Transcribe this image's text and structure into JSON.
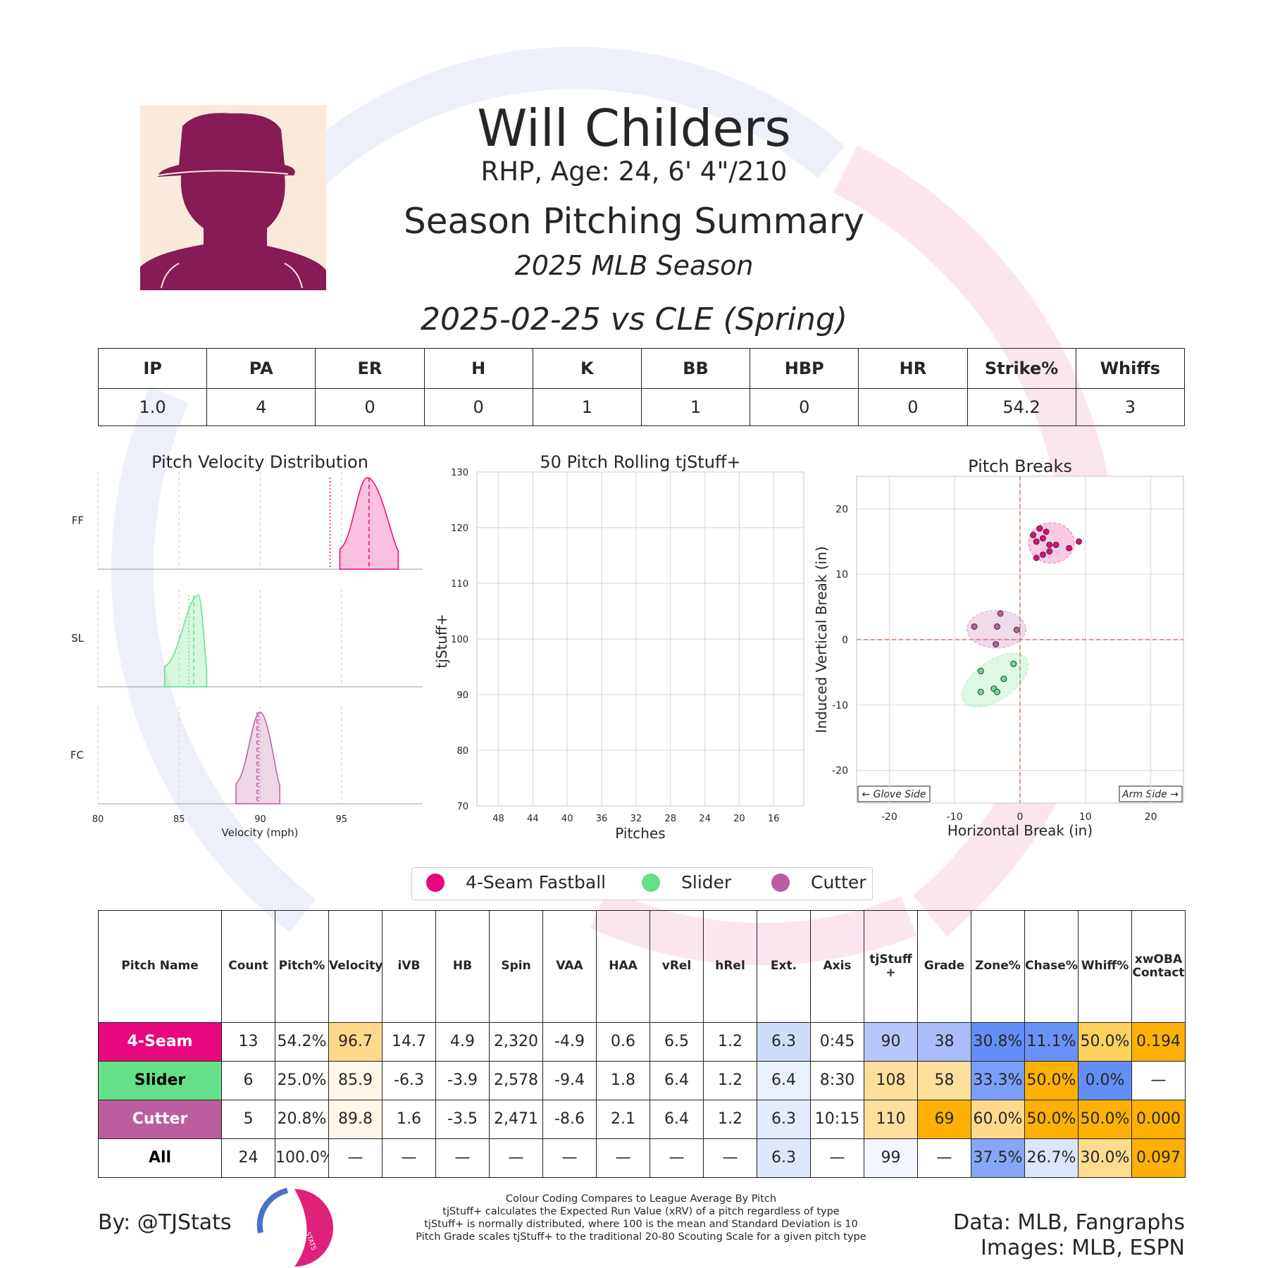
{
  "player": {
    "name": "Will Childers",
    "bio": "RHP, Age: 24, 6' 4\"/210",
    "summary_title": "Season Pitching Summary",
    "season": "2025 MLB Season",
    "game": "2025-02-25 vs CLE (Spring)"
  },
  "colors": {
    "ff": "#e8077e",
    "sl": "#65e088",
    "fc": "#bb5d9f"
  },
  "stats": {
    "headers": [
      "IP",
      "PA",
      "ER",
      "H",
      "K",
      "BB",
      "HBP",
      "HR",
      "Strike%",
      "Whiffs"
    ],
    "values": [
      "1.0",
      "4",
      "0",
      "0",
      "1",
      "1",
      "0",
      "0",
      "54.2",
      "3"
    ]
  },
  "velocity_chart": {
    "title": "Pitch Velocity Distribution",
    "xlabel": "Velocity (mph)",
    "xticks": [
      "80",
      "85",
      "90",
      "95"
    ],
    "xlim": [
      80,
      100
    ],
    "rows": [
      {
        "label": "FF",
        "color": "#e8077e",
        "range": [
          94.9,
          98.5
        ],
        "peak": 96.6,
        "mean": 96.7,
        "league_mean": 94.3
      },
      {
        "label": "SL",
        "color": "#65e088",
        "range": [
          84.1,
          86.7
        ],
        "peak": 86.2,
        "mean": 85.9,
        "league_mean": 85.6
      },
      {
        "label": "FC",
        "color": "#bb5d9f",
        "range": [
          88.5,
          91.2
        ],
        "peak": 90.0,
        "mean": 89.8,
        "league_mean": 89.9
      }
    ]
  },
  "rolling_chart": {
    "title": "50 Pitch Rolling tjStuff+",
    "ylabel": "tjStuff+",
    "xlabel": "Pitches",
    "yticks": [
      "70",
      "80",
      "90",
      "100",
      "110",
      "120",
      "130"
    ],
    "xticks": [
      "48",
      "44",
      "40",
      "36",
      "32",
      "28",
      "24",
      "20",
      "16"
    ]
  },
  "break_chart": {
    "title": "Pitch Breaks",
    "xlabel": "Horizontal Break (in)",
    "ylabel": "Induced Vertical Break (in)",
    "xticks": [
      "-20",
      "-10",
      "0",
      "10",
      "20"
    ],
    "yticks": [
      "20",
      "10",
      "0",
      "-10",
      "-20"
    ],
    "glove_label": "← Glove Side",
    "arm_label": "Arm Side →"
  },
  "chart_data": [
    {
      "type": "area",
      "title": "Pitch Velocity Distribution",
      "xlabel": "Velocity (mph)",
      "xlim": [
        80,
        100
      ],
      "series": [
        {
          "name": "FF",
          "min": 94.9,
          "max": 98.5,
          "peak": 96.6,
          "mean": 96.7
        },
        {
          "name": "SL",
          "min": 84.1,
          "max": 86.7,
          "peak": 86.2,
          "mean": 85.9
        },
        {
          "name": "FC",
          "min": 88.5,
          "max": 91.2,
          "peak": 90.0,
          "mean": 89.8
        }
      ]
    },
    {
      "type": "line",
      "title": "50 Pitch Rolling tjStuff+",
      "xlabel": "Pitches",
      "ylabel": "tjStuff+",
      "ylim": [
        70,
        130
      ],
      "xlim": [
        50,
        13
      ],
      "series": []
    },
    {
      "type": "scatter",
      "title": "Pitch Breaks",
      "xlabel": "Horizontal Break (in)",
      "ylabel": "Induced Vertical Break (in)",
      "xlim": [
        -25,
        25
      ],
      "ylim": [
        -25,
        25
      ],
      "series": [
        {
          "name": "4-Seam Fastball",
          "points": [
            [
              2,
              16
            ],
            [
              3,
              17
            ],
            [
              4,
              16.5
            ],
            [
              3.5,
              15.5
            ],
            [
              2.5,
              15
            ],
            [
              4.5,
              14.5
            ],
            [
              5.5,
              14.5
            ],
            [
              7.5,
              14
            ],
            [
              9,
              15
            ],
            [
              4.5,
              13.5
            ],
            [
              3.5,
              13
            ],
            [
              2.5,
              12.5
            ]
          ]
        },
        {
          "name": "Slider",
          "points": [
            [
              -1,
              -3.7
            ],
            [
              -2.5,
              -6
            ],
            [
              -4,
              -7.5
            ],
            [
              -6,
              -8
            ],
            [
              -3.5,
              -8
            ],
            [
              -6,
              -4.8
            ]
          ]
        },
        {
          "name": "Cutter",
          "points": [
            [
              -7,
              2
            ],
            [
              -3.5,
              2
            ],
            [
              -3,
              4
            ],
            [
              -0.5,
              1.5
            ],
            [
              -3.7,
              -0.7
            ]
          ]
        }
      ]
    }
  ],
  "legend": [
    "4-Seam Fastball",
    "Slider",
    "Cutter"
  ],
  "pitch_table": {
    "headers": [
      "Pitch Name",
      "Count",
      "Pitch%",
      "Velocity",
      "iVB",
      "HB",
      "Spin",
      "VAA",
      "HAA",
      "vRel",
      "hRel",
      "Ext.",
      "Axis",
      "tjStuff +",
      "Grade",
      "Zone%",
      "Chase%",
      "Whiff%",
      "xwOBA Contact"
    ],
    "rows": [
      {
        "cells": [
          "4-Seam",
          "13",
          "54.2%",
          "96.7",
          "14.7",
          "4.9",
          "2,320",
          "-4.9",
          "0.6",
          "6.5",
          "1.2",
          "6.3",
          "0:45",
          "90",
          "38",
          "30.8%",
          "11.1%",
          "50.0%",
          "0.194"
        ],
        "bg": [
          "#e8077e",
          "#fff",
          "#fff",
          "#fed98b",
          "#fff",
          "#fff",
          "#fff",
          "#fff",
          "#fff",
          "#fff",
          "#fff",
          "#d0dcfb",
          "#fff",
          "#b6c8fb",
          "#a8bdfa",
          "#648df5",
          "#6a92f6",
          "#fed15f",
          "#fdb107"
        ],
        "name_color": "#fff"
      },
      {
        "cells": [
          "Slider",
          "6",
          "25.0%",
          "85.9",
          "-6.3",
          "-3.9",
          "2,578",
          "-9.4",
          "1.8",
          "6.4",
          "1.2",
          "6.4",
          "8:30",
          "108",
          "58",
          "33.3%",
          "50.0%",
          "0.0%",
          "—"
        ],
        "bg": [
          "#65e088",
          "#fff",
          "#fff",
          "#fff8ea",
          "#fff",
          "#fff",
          "#fff",
          "#fff",
          "#fff",
          "#fff",
          "#fff",
          "#eaf0fd",
          "#fff",
          "#fedf9c",
          "#fedf9c",
          "#7a9ef7",
          "#fdb107",
          "#648df5",
          "#fff"
        ],
        "name_color": "#000"
      },
      {
        "cells": [
          "Cutter",
          "5",
          "20.8%",
          "89.8",
          "1.6",
          "-3.5",
          "2,471",
          "-8.6",
          "2.1",
          "6.4",
          "1.2",
          "6.3",
          "10:15",
          "110",
          "69",
          "60.0%",
          "50.0%",
          "50.0%",
          "0.000"
        ],
        "bg": [
          "#bb5d9f",
          "#fff",
          "#fff",
          "#fff8ea",
          "#fff",
          "#fff",
          "#fff",
          "#fff",
          "#fff",
          "#fff",
          "#fff",
          "#e4ebfd",
          "#fff",
          "#fedf9c",
          "#fdb107",
          "#fed98b",
          "#fdb107",
          "#fdb107",
          "#fdb107"
        ],
        "name_color": "#fff"
      },
      {
        "cells": [
          "All",
          "24",
          "100.0%",
          "—",
          "—",
          "—",
          "—",
          "—",
          "—",
          "—",
          "—",
          "6.3",
          "—",
          "99",
          "—",
          "37.5%",
          "26.7%",
          "30.0%",
          "0.097"
        ],
        "bg": [
          "#fff",
          "#fff",
          "#fff",
          "#fff",
          "#fff",
          "#fff",
          "#fff",
          "#fff",
          "#fff",
          "#fff",
          "#fff",
          "#dfe7fc",
          "#fff",
          "#f3f6fe",
          "#fff",
          "#86a6f8",
          "#dde5fc",
          "#fedb8f",
          "#fdb107"
        ],
        "name_color": "#000"
      }
    ]
  },
  "footer": {
    "byline": "By: @TJStats",
    "notes": [
      "Colour Coding Compares to League Average By Pitch",
      "tjStuff+ calculates the Expected Run Value (xRV) of a pitch regardless of type",
      "tjStuff+ is normally distributed, where 100 is the mean and Standard Deviation is 10",
      "Pitch Grade scales tjStuff+ to the traditional 20-80 Scouting Scale for a given pitch type"
    ],
    "data_credit": "Data: MLB, Fangraphs",
    "image_credit": "Images: MLB, ESPN",
    "logo_text": "STATS"
  }
}
